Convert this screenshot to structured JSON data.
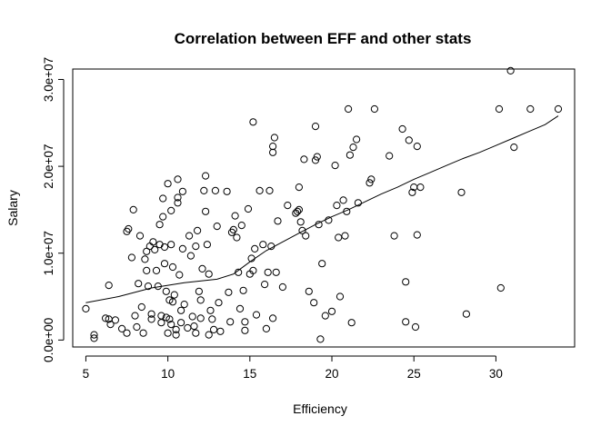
{
  "chart_data": {
    "type": "scatter",
    "title": "Correlation between EFF and other stats",
    "xlabel": "Efficiency",
    "ylabel": "Salary",
    "xlim": [
      4.2,
      34.8
    ],
    "ylim": [
      -800000,
      31200000
    ],
    "x_ticks": [
      5,
      10,
      15,
      20,
      25,
      30
    ],
    "x_tick_labels": [
      "5",
      "10",
      "15",
      "20",
      "25",
      "30"
    ],
    "y_ticks": [
      0,
      10000000,
      20000000,
      30000000
    ],
    "y_tick_labels": [
      "0.0e+00",
      "1.0e+07",
      "2.0e+07",
      "3.0e+07"
    ],
    "grid": false,
    "legend": "none",
    "marker": "open-circle",
    "series": [
      {
        "points": [
          [
            5.0,
            3600000
          ],
          [
            5.5,
            200000
          ],
          [
            5.5,
            600000
          ],
          [
            6.2,
            2500000
          ],
          [
            6.4,
            6300000
          ],
          [
            6.4,
            2400000
          ],
          [
            6.5,
            1800000
          ],
          [
            6.8,
            2300000
          ],
          [
            7.2,
            1300000
          ],
          [
            7.5,
            800000
          ],
          [
            7.5,
            12500000
          ],
          [
            7.6,
            12800000
          ],
          [
            7.8,
            9500000
          ],
          [
            7.9,
            15000000
          ],
          [
            8.0,
            2800000
          ],
          [
            8.1,
            1500000
          ],
          [
            8.2,
            6500000
          ],
          [
            8.3,
            12000000
          ],
          [
            8.4,
            3800000
          ],
          [
            8.5,
            800000
          ],
          [
            8.6,
            9300000
          ],
          [
            8.7,
            8000000
          ],
          [
            8.7,
            10200000
          ],
          [
            8.8,
            6200000
          ],
          [
            8.9,
            10800000
          ],
          [
            9.0,
            3000000
          ],
          [
            9.0,
            2400000
          ],
          [
            9.1,
            11300000
          ],
          [
            9.2,
            10400000
          ],
          [
            9.3,
            8000000
          ],
          [
            9.4,
            6200000
          ],
          [
            9.5,
            13300000
          ],
          [
            9.5,
            11000000
          ],
          [
            9.6,
            2800000
          ],
          [
            9.6,
            2000000
          ],
          [
            9.7,
            16300000
          ],
          [
            9.7,
            14200000
          ],
          [
            9.8,
            10700000
          ],
          [
            9.8,
            8800000
          ],
          [
            9.9,
            5600000
          ],
          [
            9.9,
            2600000
          ],
          [
            10.0,
            18000000
          ],
          [
            10.0,
            800000
          ],
          [
            10.1,
            4600000
          ],
          [
            10.1,
            2400000
          ],
          [
            10.2,
            14900000
          ],
          [
            10.2,
            11000000
          ],
          [
            10.2,
            1800000
          ],
          [
            10.3,
            8400000
          ],
          [
            10.3,
            4400000
          ],
          [
            10.4,
            5200000
          ],
          [
            10.5,
            1200000
          ],
          [
            10.5,
            600000
          ],
          [
            10.6,
            18500000
          ],
          [
            10.6,
            16400000
          ],
          [
            10.6,
            15800000
          ],
          [
            10.7,
            7500000
          ],
          [
            10.8,
            3400000
          ],
          [
            10.8,
            2000000
          ],
          [
            10.9,
            17100000
          ],
          [
            10.9,
            10500000
          ],
          [
            11.0,
            4100000
          ],
          [
            11.2,
            1400000
          ],
          [
            11.3,
            12000000
          ],
          [
            11.4,
            9700000
          ],
          [
            11.5,
            2700000
          ],
          [
            11.6,
            1600000
          ],
          [
            11.7,
            800000
          ],
          [
            11.7,
            10800000
          ],
          [
            11.8,
            12600000
          ],
          [
            11.9,
            5600000
          ],
          [
            12.0,
            4600000
          ],
          [
            12.0,
            2500000
          ],
          [
            12.1,
            8200000
          ],
          [
            12.2,
            17200000
          ],
          [
            12.3,
            18900000
          ],
          [
            12.3,
            14800000
          ],
          [
            12.4,
            11000000
          ],
          [
            12.5,
            7600000
          ],
          [
            12.5,
            600000
          ],
          [
            12.6,
            3400000
          ],
          [
            12.7,
            2400000
          ],
          [
            12.8,
            1200000
          ],
          [
            12.9,
            17200000
          ],
          [
            13.0,
            13100000
          ],
          [
            13.1,
            4300000
          ],
          [
            13.2,
            1000000
          ],
          [
            13.6,
            17100000
          ],
          [
            13.7,
            5500000
          ],
          [
            13.8,
            2100000
          ],
          [
            13.9,
            12400000
          ],
          [
            14.0,
            12700000
          ],
          [
            14.1,
            14300000
          ],
          [
            14.2,
            11800000
          ],
          [
            14.3,
            7800000
          ],
          [
            14.4,
            3600000
          ],
          [
            14.5,
            13200000
          ],
          [
            14.6,
            5700000
          ],
          [
            14.7,
            2100000
          ],
          [
            14.7,
            1100000
          ],
          [
            14.9,
            15100000
          ],
          [
            15.0,
            7600000
          ],
          [
            15.1,
            9400000
          ],
          [
            15.2,
            25100000
          ],
          [
            15.2,
            8000000
          ],
          [
            15.3,
            10500000
          ],
          [
            15.4,
            2900000
          ],
          [
            15.6,
            17200000
          ],
          [
            15.8,
            11000000
          ],
          [
            15.9,
            6400000
          ],
          [
            16.0,
            1300000
          ],
          [
            16.1,
            7800000
          ],
          [
            16.2,
            17200000
          ],
          [
            16.3,
            10800000
          ],
          [
            16.4,
            22300000
          ],
          [
            16.4,
            21600000
          ],
          [
            16.4,
            2500000
          ],
          [
            16.5,
            23300000
          ],
          [
            16.6,
            7800000
          ],
          [
            16.7,
            13700000
          ],
          [
            17.0,
            6100000
          ],
          [
            17.3,
            15500000
          ],
          [
            17.8,
            14600000
          ],
          [
            17.9,
            14800000
          ],
          [
            18.0,
            17600000
          ],
          [
            18.0,
            15000000
          ],
          [
            18.1,
            13600000
          ],
          [
            18.2,
            12600000
          ],
          [
            18.3,
            20800000
          ],
          [
            18.4,
            12000000
          ],
          [
            18.6,
            5600000
          ],
          [
            18.9,
            4300000
          ],
          [
            19.0,
            24600000
          ],
          [
            19.0,
            20700000
          ],
          [
            19.1,
            21100000
          ],
          [
            19.2,
            13300000
          ],
          [
            19.3,
            100000
          ],
          [
            19.4,
            8800000
          ],
          [
            19.6,
            2800000
          ],
          [
            19.8,
            13800000
          ],
          [
            20.0,
            3300000
          ],
          [
            20.2,
            20100000
          ],
          [
            20.3,
            15500000
          ],
          [
            20.4,
            11800000
          ],
          [
            20.5,
            5000000
          ],
          [
            20.7,
            16100000
          ],
          [
            20.8,
            12000000
          ],
          [
            20.9,
            14800000
          ],
          [
            21.0,
            26600000
          ],
          [
            21.1,
            21300000
          ],
          [
            21.2,
            2000000
          ],
          [
            21.3,
            22200000
          ],
          [
            21.5,
            23100000
          ],
          [
            21.6,
            15800000
          ],
          [
            22.3,
            18100000
          ],
          [
            22.4,
            18500000
          ],
          [
            22.6,
            26600000
          ],
          [
            23.5,
            21200000
          ],
          [
            23.8,
            12000000
          ],
          [
            24.3,
            24300000
          ],
          [
            24.5,
            6700000
          ],
          [
            24.5,
            2100000
          ],
          [
            24.7,
            23000000
          ],
          [
            24.9,
            17000000
          ],
          [
            25.0,
            17600000
          ],
          [
            25.1,
            1500000
          ],
          [
            25.2,
            12100000
          ],
          [
            25.2,
            22300000
          ],
          [
            25.4,
            17600000
          ],
          [
            27.9,
            17000000
          ],
          [
            28.2,
            3000000
          ],
          [
            30.2,
            26600000
          ],
          [
            30.3,
            6000000
          ],
          [
            30.9,
            31000000
          ],
          [
            31.1,
            22200000
          ],
          [
            32.1,
            26600000
          ],
          [
            33.8,
            26600000
          ]
        ]
      }
    ],
    "smooth_line": [
      [
        5.0,
        4300000
      ],
      [
        7.0,
        5000000
      ],
      [
        9.0,
        6000000
      ],
      [
        11.0,
        6600000
      ],
      [
        13.0,
        7000000
      ],
      [
        14.0,
        7600000
      ],
      [
        15.0,
        9000000
      ],
      [
        16.0,
        10300000
      ],
      [
        17.0,
        11300000
      ],
      [
        18.0,
        12300000
      ],
      [
        19.0,
        13300000
      ],
      [
        20.0,
        14200000
      ],
      [
        21.0,
        15000000
      ],
      [
        22.0,
        15900000
      ],
      [
        23.0,
        16800000
      ],
      [
        24.0,
        17600000
      ],
      [
        25.0,
        18500000
      ],
      [
        26.0,
        19300000
      ],
      [
        27.0,
        20100000
      ],
      [
        28.0,
        20900000
      ],
      [
        29.0,
        21600000
      ],
      [
        30.0,
        22400000
      ],
      [
        31.0,
        23200000
      ],
      [
        32.0,
        24000000
      ],
      [
        33.0,
        24800000
      ],
      [
        33.8,
        25800000
      ]
    ]
  }
}
